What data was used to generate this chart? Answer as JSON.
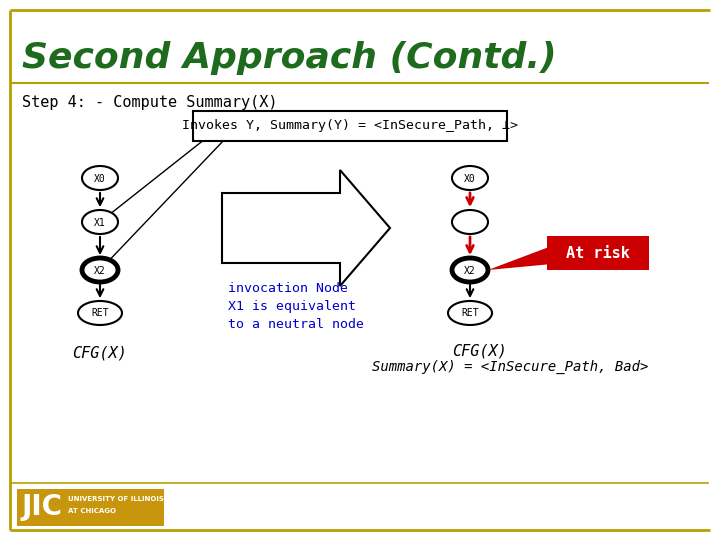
{
  "title": "Second Approach (Contd.)",
  "title_color": "#1e6b1e",
  "bg_color": "#ffffff",
  "border_color": "#b8a000",
  "step_text": "Step 4: - Compute Summary(X)",
  "invokes_box_text": "Invokes Y, Summary(Y) = <InSecure_Path, ⊥>",
  "invocation_text": "invocation Node\nX1 is equivalent\nto a neutral node",
  "invocation_color": "#0000cc",
  "cfg_x_left": "CFG(X)",
  "cfg_x_right_line1": "CFG(X)",
  "cfg_x_right_line2": "Summary(X) = <InSecure_Path, Bad>",
  "at_risk_text": "At risk",
  "at_risk_bg": "#cc0000",
  "at_risk_fg": "#ffffff",
  "arrow_red": "#cc0000",
  "jic_bg": "#c8960c",
  "jic_text_color": "#ffffff"
}
